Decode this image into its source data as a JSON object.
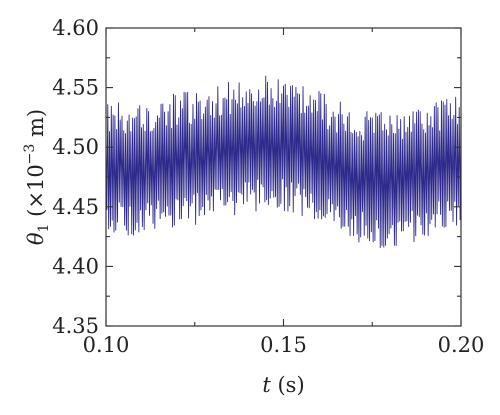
{
  "chart_data": {
    "type": "line",
    "title": "",
    "xlabel": {
      "var": "t",
      "unit": "(s)"
    },
    "ylabel": {
      "var": "θ",
      "sub": "1",
      "unit_prefix": "(×10",
      "unit_exp": "−3",
      "unit_suffix": " m)"
    },
    "xlim": [
      0.1,
      0.2
    ],
    "ylim": [
      4.35,
      4.6
    ],
    "xticks": [
      "0.10",
      "0.15",
      "0.20"
    ],
    "yticks": [
      "4.35",
      "4.40",
      "4.45",
      "4.50",
      "4.55",
      "4.60"
    ],
    "x_minor_step": 0.025,
    "y_minor_step": 0.025,
    "grid": false,
    "legend": "none",
    "series_color": "#2e2a8c",
    "series": [
      {
        "sampling": "approx. 200 oscillation peaks between t = 0.10 s and t = 0.20 s",
        "x_start": 0.1,
        "x_end": 0.2,
        "envelope_center": [
          {
            "x": 0.1,
            "y": 4.483
          },
          {
            "x": 0.11,
            "y": 4.482
          },
          {
            "x": 0.12,
            "y": 4.488
          },
          {
            "x": 0.13,
            "y": 4.494
          },
          {
            "x": 0.14,
            "y": 4.502
          },
          {
            "x": 0.147,
            "y": 4.505
          },
          {
            "x": 0.155,
            "y": 4.498
          },
          {
            "x": 0.165,
            "y": 4.482
          },
          {
            "x": 0.175,
            "y": 4.472
          },
          {
            "x": 0.185,
            "y": 4.476
          },
          {
            "x": 0.195,
            "y": 4.485
          },
          {
            "x": 0.2,
            "y": 4.487
          }
        ],
        "amplitude_approx": 0.052,
        "max_approx": {
          "x": 0.135,
          "y": 4.585
        },
        "min_approx": {
          "x": 0.176,
          "y": 4.395
        }
      }
    ]
  }
}
